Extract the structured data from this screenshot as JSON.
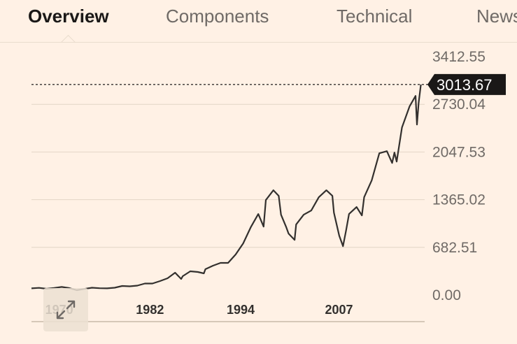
{
  "tabs": [
    {
      "label": "Overview",
      "active": true
    },
    {
      "label": "Components",
      "active": false
    },
    {
      "label": "Technical",
      "active": false
    },
    {
      "label": "News",
      "active": false
    }
  ],
  "expand_button": {
    "icon": "expand-arrows-icon"
  },
  "colors": {
    "background": "#fff1e5",
    "line": "#33302e",
    "grid": "#e2d5c6",
    "label_bg": "#1a1817"
  },
  "chart_data": {
    "type": "line",
    "title": "",
    "xlabel": "",
    "ylabel": "",
    "x_ticks": [
      {
        "label": "1970",
        "year": 1970
      },
      {
        "label": "1982",
        "year": 1982
      },
      {
        "label": "1994",
        "year": 1994
      },
      {
        "label": "2007",
        "year": 2007
      }
    ],
    "y_ticks": [
      0.0,
      682.51,
      1365.02,
      2047.53,
      2730.04,
      3412.55
    ],
    "y_tick_labels": [
      "0.00",
      "682.51",
      "1365.02",
      "2047.53",
      "2730.04",
      "3412.55"
    ],
    "ylim": [
      0,
      3412.55
    ],
    "xlim": [
      1968,
      2020
    ],
    "last_value": 3013.67,
    "last_value_label": "3013.67",
    "grid": true,
    "series": [
      {
        "x": [
          1968,
          1969,
          1970,
          1971,
          1972,
          1973,
          1974,
          1975,
          1976,
          1977,
          1978,
          1979,
          1980,
          1981,
          1982,
          1983,
          1984,
          1985,
          1986,
          1987,
          1987.8,
          1988,
          1989,
          1990,
          1990.8,
          1991,
          1992,
          1993,
          1994,
          1995,
          1996,
          1997,
          1998,
          1998.7,
          1999,
          2000,
          2000.7,
          2001,
          2001.7,
          2002,
          2002.8,
          2003,
          2004,
          2005,
          2006,
          2007,
          2007.8,
          2008,
          2008.7,
          2009.2,
          2009.6,
          2010,
          2011,
          2011.7,
          2012,
          2013,
          2014,
          2015,
          2015.7,
          2016,
          2016.3,
          2017,
          2018,
          2018.8,
          2018.98,
          2019.2,
          2019.5
        ],
        "y": [
          96,
          103,
          90,
          101,
          116,
          100,
          70,
          88,
          105,
          98,
          96,
          105,
          130,
          125,
          135,
          165,
          165,
          200,
          240,
          320,
          230,
          270,
          340,
          330,
          310,
          370,
          420,
          460,
          460,
          580,
          740,
          970,
          1160,
          980,
          1360,
          1500,
          1420,
          1150,
          970,
          880,
          790,
          1010,
          1150,
          1210,
          1400,
          1500,
          1420,
          1180,
          850,
          700,
          920,
          1160,
          1260,
          1140,
          1400,
          1640,
          2030,
          2060,
          1890,
          2040,
          1910,
          2400,
          2700,
          2850,
          2440,
          2750,
          3013.67
        ]
      }
    ]
  }
}
